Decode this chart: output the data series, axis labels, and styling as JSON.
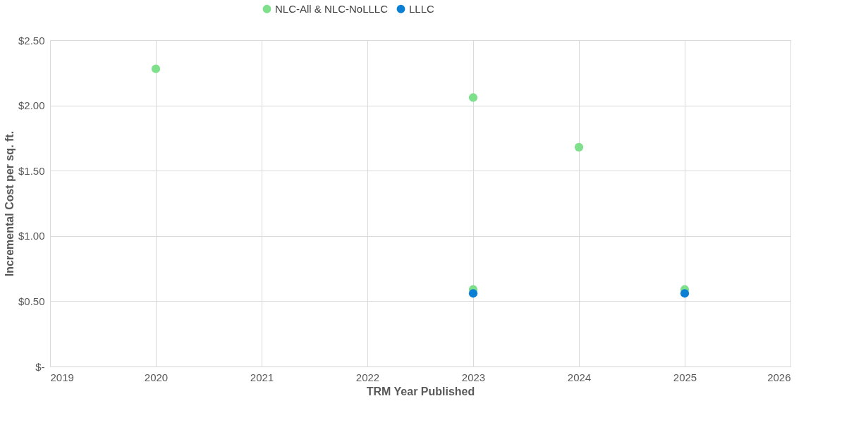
{
  "chart_data": {
    "type": "scatter",
    "xlabel": "TRM Year Published",
    "ylabel": "Incremental Cost per sq. ft.",
    "series": [
      {
        "name": "NLC-All & NLC-NoLLLC",
        "color": "#7ee08a",
        "x": [
          2020,
          2023,
          2024,
          2023,
          2025
        ],
        "values": [
          2.28,
          2.06,
          1.68,
          0.59,
          0.59
        ]
      },
      {
        "name": "LLLC",
        "color": "#0b7fd4",
        "x": [
          2023,
          2025
        ],
        "values": [
          0.56,
          0.56
        ]
      }
    ],
    "xlim": [
      2019,
      2026
    ],
    "xticks": [
      2019,
      2020,
      2021,
      2022,
      2023,
      2024,
      2025,
      2026
    ],
    "ylim": [
      0,
      2.5
    ],
    "yticks": [
      {
        "value": 0,
        "label": "$-"
      },
      {
        "value": 0.5,
        "label": "$0.50"
      },
      {
        "value": 1,
        "label": "$1.00"
      },
      {
        "value": 1.5,
        "label": "$1.50"
      },
      {
        "value": 2,
        "label": "$2.00"
      },
      {
        "value": 2.5,
        "label": "$2.50"
      }
    ],
    "grid": true,
    "legend": "top",
    "marker": "circle"
  }
}
